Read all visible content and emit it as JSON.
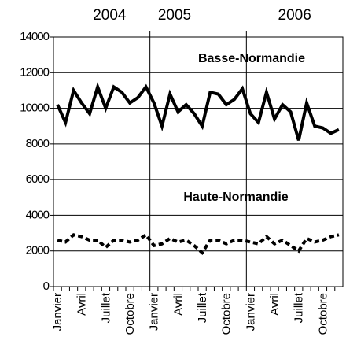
{
  "chart_data": {
    "type": "line",
    "years": [
      "2004",
      "2005",
      "2006"
    ],
    "categories": [
      "Janvier",
      null,
      null,
      "Avril",
      null,
      null,
      "Juillet",
      null,
      null,
      "Octobre",
      null,
      null,
      "Janvier",
      null,
      null,
      "Avril",
      null,
      null,
      "Juillet",
      null,
      null,
      "Octobre",
      null,
      null,
      "Janvier",
      null,
      null,
      "Avril",
      null,
      null,
      "Juillet",
      null,
      null,
      "Octobre",
      null,
      null
    ],
    "series": [
      {
        "name": "Basse-Normandie",
        "color": "#000000",
        "dashed": false,
        "values": [
          10200,
          9200,
          11000,
          10300,
          9700,
          11200,
          10000,
          11200,
          10900,
          10300,
          10600,
          11200,
          10300,
          9000,
          10800,
          9800,
          10200,
          9700,
          9000,
          10900,
          10800,
          10200,
          10500,
          11100,
          9700,
          9200,
          10900,
          9400,
          10200,
          9800,
          8200,
          10300,
          9000,
          8900,
          8600,
          8800
        ]
      },
      {
        "name": "Haute-Normandie",
        "color": "#000000",
        "dashed": true,
        "values": [
          2600,
          2500,
          2900,
          2800,
          2600,
          2600,
          2200,
          2600,
          2600,
          2500,
          2600,
          2900,
          2300,
          2400,
          2700,
          2500,
          2600,
          2300,
          1900,
          2600,
          2600,
          2400,
          2600,
          2600,
          2500,
          2400,
          2800,
          2400,
          2600,
          2300,
          2000,
          2700,
          2500,
          2600,
          2800,
          2900
        ]
      }
    ],
    "ylim": [
      0,
      14000
    ],
    "yticks": [
      0,
      2000,
      4000,
      6000,
      8000,
      10000,
      12000,
      14000
    ],
    "grid": true
  }
}
